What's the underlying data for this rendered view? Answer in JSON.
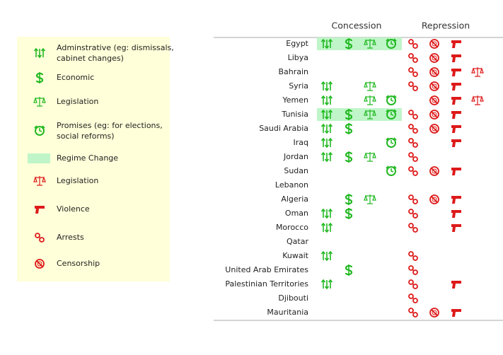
{
  "legend": [
    {
      "label": "Adminstrative (eg: dismissals,",
      "label2": "cabinet changes)",
      "color": "#22b822"
    },
    {
      "label": "Economic",
      "color": "#22b822"
    },
    {
      "label": "Legislation",
      "color": "#22b822"
    },
    {
      "label": "Promises (eg: for elections,",
      "label2": "social reforms)",
      "color": "#22b822"
    },
    {
      "label": "Regime Change",
      "color": "#bff5c8"
    },
    {
      "label": "Legislation",
      "color": "#dd1a1a"
    },
    {
      "label": "Violence",
      "color": "#dd1a1a"
    },
    {
      "label": "Arrests",
      "color": "#dd1a1a"
    },
    {
      "label": "Censorship",
      "color": "#dd1a1a"
    }
  ],
  "table": {
    "groups": [
      "Concession",
      "Repression"
    ],
    "columns": [
      0,
      1,
      2,
      3,
      7,
      8,
      6,
      5
    ],
    "regime_change_icon": 4,
    "rows": [
      {
        "country": "Egypt",
        "regime_change": true,
        "cells": [
          1,
          1,
          1,
          1,
          1,
          1,
          1,
          0
        ]
      },
      {
        "country": "Libya",
        "cells": [
          0,
          0,
          0,
          0,
          1,
          1,
          1,
          0
        ]
      },
      {
        "country": "Bahrain",
        "cells": [
          0,
          0,
          0,
          0,
          1,
          1,
          1,
          1
        ]
      },
      {
        "country": "Syria",
        "cells": [
          1,
          0,
          1,
          0,
          1,
          1,
          1,
          0
        ]
      },
      {
        "country": "Yemen",
        "cells": [
          1,
          0,
          1,
          1,
          0,
          1,
          1,
          1
        ]
      },
      {
        "country": "Tunisia",
        "regime_change": true,
        "cells": [
          1,
          1,
          1,
          1,
          1,
          1,
          1,
          0
        ]
      },
      {
        "country": "Saudi Arabia",
        "cells": [
          1,
          1,
          0,
          0,
          1,
          1,
          1,
          0
        ]
      },
      {
        "country": "Iraq",
        "cells": [
          1,
          0,
          0,
          1,
          1,
          0,
          1,
          0
        ]
      },
      {
        "country": "Jordan",
        "cells": [
          1,
          1,
          1,
          0,
          1,
          0,
          0,
          0
        ]
      },
      {
        "country": "Sudan",
        "cells": [
          0,
          0,
          0,
          1,
          1,
          1,
          1,
          0
        ]
      },
      {
        "country": "Lebanon",
        "cells": [
          0,
          0,
          0,
          0,
          0,
          0,
          0,
          0
        ]
      },
      {
        "country": "Algeria",
        "cells": [
          0,
          1,
          1,
          0,
          1,
          1,
          1,
          0
        ]
      },
      {
        "country": "Oman",
        "cells": [
          1,
          1,
          0,
          0,
          1,
          0,
          1,
          0
        ]
      },
      {
        "country": "Morocco",
        "cells": [
          1,
          0,
          0,
          0,
          1,
          0,
          1,
          0
        ]
      },
      {
        "country": "Qatar",
        "cells": [
          0,
          0,
          0,
          0,
          0,
          0,
          0,
          0
        ]
      },
      {
        "country": "Kuwait",
        "cells": [
          1,
          0,
          0,
          0,
          1,
          0,
          0,
          0
        ]
      },
      {
        "country": "United Arab Emirates",
        "cells": [
          0,
          1,
          0,
          0,
          1,
          0,
          0,
          0
        ]
      },
      {
        "country": "Palestinian Territories",
        "cells": [
          1,
          0,
          0,
          0,
          1,
          0,
          1,
          0
        ]
      },
      {
        "country": "Djibouti",
        "cells": [
          0,
          0,
          0,
          0,
          1,
          0,
          0,
          0
        ]
      },
      {
        "country": "Mauritania",
        "cells": [
          0,
          0,
          0,
          0,
          1,
          1,
          1,
          0
        ]
      }
    ]
  }
}
